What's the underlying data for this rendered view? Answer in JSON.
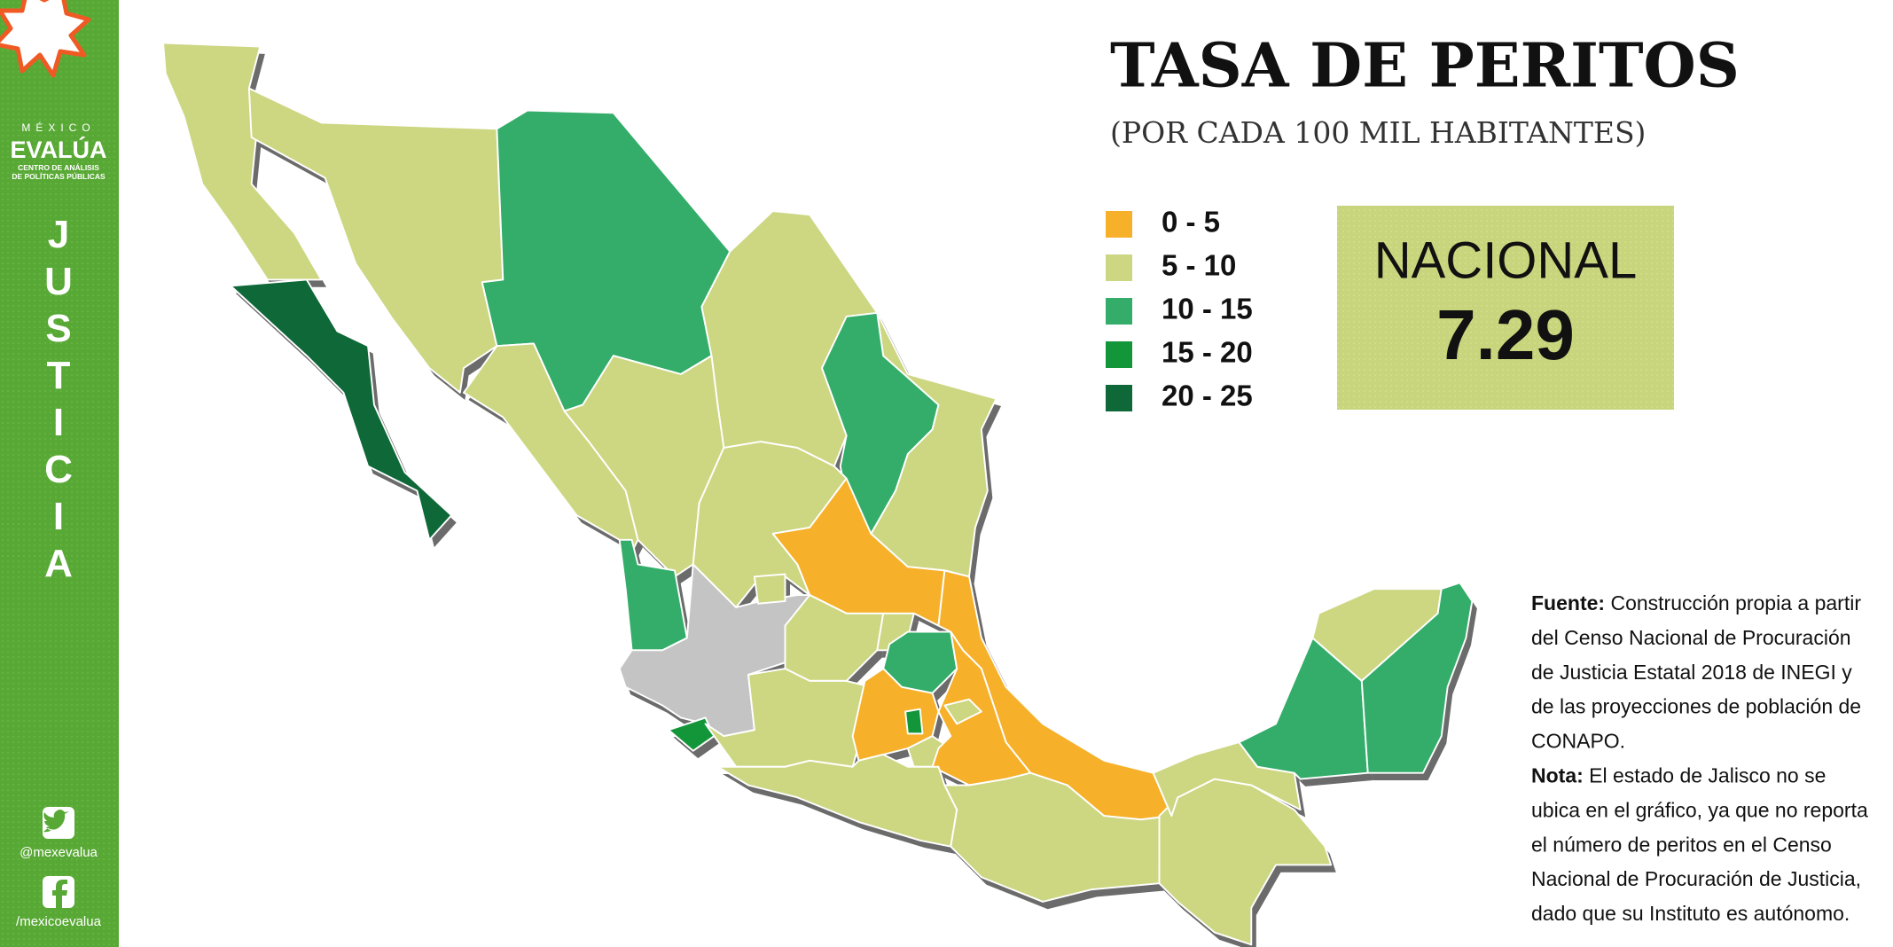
{
  "sidebar": {
    "brand_top": "MÉXICO",
    "brand": "EVALÚA",
    "brand_sub_1": "CENTRO DE ANÁLISIS",
    "brand_sub_2": "DE POLÍTICAS PÚBLICAS",
    "section": "JUSTICIA",
    "twitter": "@mexevalua",
    "facebook": "/mexicoevalua"
  },
  "header": {
    "title": "TASA DE PERITOS",
    "subtitle": "(POR CADA  100 MIL HABITANTES)"
  },
  "legend": [
    {
      "label": "0 - 5",
      "color": "#f6b02a"
    },
    {
      "label": "5 - 10",
      "color": "#cdd681"
    },
    {
      "label": "10 - 15",
      "color": "#33ad69"
    },
    {
      "label": "15 - 20",
      "color": "#139639"
    },
    {
      "label": "20 - 25",
      "color": "#0e6838"
    }
  ],
  "national": {
    "label": "NACIONAL",
    "value": 7.29
  },
  "notes": [
    {
      "label": "Fuente:",
      "lines": [
        "Construcción propia a partir",
        "del Censo Nacional de Procuración",
        "de Justicia Estatal 2018 de INEGI y",
        "de las proyecciones de población de",
        "CONAPO."
      ]
    },
    {
      "label": "Nota:",
      "lines": [
        "El estado de Jalisco no se",
        "ubica en el gráfico, ya que no reporta",
        "el número de peritos en el Censo",
        "Nacional de Procuración de Justicia,",
        "dado que su Instituto es autónomo."
      ]
    }
  ]
}
